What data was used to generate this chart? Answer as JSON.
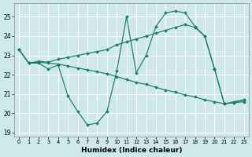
{
  "xlabel": "Humidex (Indice chaleur)",
  "xlim": [
    -0.5,
    23.5
  ],
  "ylim": [
    18.8,
    25.7
  ],
  "yticks": [
    19,
    20,
    21,
    22,
    23,
    24,
    25
  ],
  "xticks": [
    0,
    1,
    2,
    3,
    4,
    5,
    6,
    7,
    8,
    9,
    10,
    11,
    12,
    13,
    14,
    15,
    16,
    17,
    18,
    19,
    20,
    21,
    22,
    23
  ],
  "bg_color": "#cfe8ec",
  "line_color": "#1b7b6e",
  "grid_color": "#ffffff",
  "series": [
    [
      23.3,
      22.6,
      22.6,
      22.3,
      22.5,
      20.9,
      20.1,
      19.4,
      19.5,
      20.1,
      22.2,
      25.0,
      22.1,
      23.0,
      24.5,
      25.2,
      25.3,
      25.2,
      24.5,
      24.0,
      22.3,
      20.5,
      20.6,
      20.7
    ],
    [
      23.3,
      22.6,
      22.7,
      22.65,
      22.8,
      22.9,
      23.0,
      23.1,
      23.2,
      23.3,
      23.55,
      23.7,
      23.85,
      24.0,
      24.15,
      24.3,
      24.45,
      24.6,
      24.45,
      24.0,
      22.3,
      20.5,
      20.55,
      20.7
    ],
    [
      23.3,
      22.6,
      22.65,
      22.6,
      22.55,
      22.45,
      22.35,
      22.25,
      22.15,
      22.05,
      21.9,
      21.75,
      21.6,
      21.5,
      21.35,
      21.2,
      21.1,
      20.95,
      20.85,
      20.7,
      20.6,
      20.5,
      20.55,
      20.6
    ]
  ]
}
